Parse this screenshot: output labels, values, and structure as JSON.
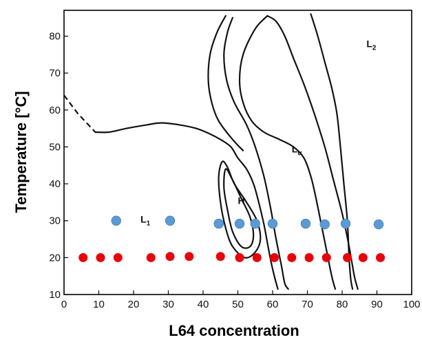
{
  "chart_data": {
    "type": "scatter",
    "title": "",
    "xlabel": "L64 concentration",
    "ylabel": "Temperature [°C]",
    "xlim": [
      0,
      100
    ],
    "ylim": [
      10,
      87
    ],
    "xticks": [
      "0",
      "10",
      "20",
      "30",
      "40",
      "50",
      "60",
      "70",
      "80",
      "90",
      "100"
    ],
    "yticks": [
      "10",
      "20",
      "30",
      "40",
      "50",
      "60",
      "70",
      "80"
    ],
    "grid": false,
    "phase_labels": [
      {
        "main": "L",
        "sub": "1",
        "x": 22,
        "y": 29.5
      },
      {
        "main": "H",
        "x": 50,
        "y": 34.5
      },
      {
        "main": "L",
        "sub": "α",
        "x": 65.5,
        "y": 48.5
      },
      {
        "main": "L",
        "sub": "2",
        "x": 87,
        "y": 77
      }
    ],
    "series": [
      {
        "color": "#e8000b",
        "marker": "circle",
        "points": [
          [
            5.5,
            20
          ],
          [
            10.5,
            20
          ],
          [
            15.5,
            20
          ],
          [
            25,
            20
          ],
          [
            30.5,
            20.3
          ],
          [
            36,
            20.3
          ],
          [
            45,
            20.3
          ],
          [
            50.5,
            20
          ],
          [
            55.5,
            20
          ],
          [
            60.5,
            20
          ],
          [
            65.5,
            20
          ],
          [
            70.5,
            20
          ],
          [
            75.5,
            20
          ],
          [
            81.5,
            20
          ],
          [
            86,
            20
          ],
          [
            91,
            20
          ]
        ]
      },
      {
        "color": "#5b9bd5",
        "marker": "circle",
        "points": [
          [
            15,
            30
          ],
          [
            30.5,
            30
          ],
          [
            44.5,
            29.2
          ],
          [
            50.5,
            29.2
          ],
          [
            55,
            29.2
          ],
          [
            60,
            29.2
          ],
          [
            69.5,
            29.2
          ],
          [
            75,
            29
          ],
          [
            81,
            29.2
          ],
          [
            90.5,
            29
          ]
        ]
      }
    ],
    "curves": [
      {
        "style": "dashed",
        "points": [
          [
            0,
            64
          ],
          [
            4,
            59
          ],
          [
            9,
            54
          ]
        ]
      },
      {
        "style": "solid",
        "points": [
          [
            9,
            54
          ],
          [
            13,
            54
          ],
          [
            18,
            55
          ],
          [
            24,
            56
          ],
          [
            28,
            56.5
          ],
          [
            33,
            56
          ],
          [
            38,
            55
          ],
          [
            42,
            53.5
          ],
          [
            45,
            52
          ],
          [
            48,
            50
          ],
          [
            50,
            47
          ],
          [
            52.5,
            44
          ],
          [
            54.5,
            40
          ],
          [
            56,
            35
          ],
          [
            57.5,
            29
          ],
          [
            58.5,
            24
          ],
          [
            59.5,
            19
          ],
          [
            60.5,
            15
          ],
          [
            61.5,
            11.5
          ]
        ]
      },
      {
        "style": "solid",
        "points": [
          [
            46.5,
            85.5
          ],
          [
            44,
            81
          ],
          [
            42,
            75
          ],
          [
            41.5,
            68
          ],
          [
            42.5,
            62
          ],
          [
            44.5,
            57
          ],
          [
            48.5,
            52
          ],
          [
            51.5,
            49
          ]
        ]
      },
      {
        "style": "solid",
        "points": [
          [
            48.5,
            85
          ],
          [
            47,
            81
          ],
          [
            46,
            75
          ],
          [
            46.8,
            68
          ],
          [
            49,
            62
          ],
          [
            52.5,
            56
          ],
          [
            55,
            50
          ],
          [
            57.5,
            42
          ],
          [
            59.5,
            33
          ],
          [
            61,
            25
          ],
          [
            62.5,
            18
          ],
          [
            63.5,
            13
          ],
          [
            64.5,
            11.5
          ]
        ]
      },
      {
        "style": "solid",
        "points": [
          [
            58.5,
            85.5
          ],
          [
            55,
            82
          ],
          [
            51.5,
            75
          ],
          [
            50.5,
            68
          ],
          [
            51.5,
            62
          ],
          [
            54,
            57
          ],
          [
            57.5,
            54
          ],
          [
            62,
            52
          ],
          [
            66,
            50
          ],
          [
            69,
            47
          ],
          [
            71,
            42
          ],
          [
            72.5,
            36
          ],
          [
            74,
            29
          ],
          [
            75.5,
            22
          ],
          [
            77,
            15
          ],
          [
            78,
            11.5
          ]
        ]
      },
      {
        "style": "solid",
        "points": [
          [
            58.5,
            85.5
          ],
          [
            61,
            84
          ],
          [
            63.5,
            80
          ],
          [
            66,
            74
          ],
          [
            69,
            67
          ],
          [
            72,
            59
          ],
          [
            75,
            50
          ],
          [
            77.5,
            41
          ],
          [
            80,
            32
          ],
          [
            82,
            23
          ],
          [
            83.5,
            15
          ],
          [
            84.5,
            11.5
          ]
        ]
      },
      {
        "style": "solid",
        "points": [
          [
            71,
            86
          ],
          [
            73,
            80
          ],
          [
            75,
            73
          ],
          [
            77,
            66
          ],
          [
            78.5,
            59
          ],
          [
            79.5,
            50
          ],
          [
            80.5,
            40
          ],
          [
            81.5,
            30
          ],
          [
            82,
            20
          ],
          [
            82.5,
            14
          ],
          [
            83,
            11.5
          ]
        ]
      },
      {
        "style": "solid",
        "closed": true,
        "points": [
          [
            45.5,
            46
          ],
          [
            44.5,
            42
          ],
          [
            45,
            35
          ],
          [
            46.5,
            28
          ],
          [
            48.5,
            23
          ],
          [
            52,
            20
          ],
          [
            55,
            21.5
          ],
          [
            56.5,
            25
          ],
          [
            55.5,
            30
          ],
          [
            52.5,
            35
          ],
          [
            49,
            40
          ],
          [
            47,
            44.5
          ]
        ]
      },
      {
        "style": "solid",
        "closed": true,
        "points": [
          [
            46.5,
            44
          ],
          [
            46,
            39
          ],
          [
            47,
            33
          ],
          [
            48.5,
            27
          ],
          [
            51,
            23
          ],
          [
            53.5,
            23
          ],
          [
            54.5,
            26
          ],
          [
            53.5,
            31
          ],
          [
            51,
            36
          ],
          [
            48.5,
            41
          ]
        ]
      }
    ]
  }
}
